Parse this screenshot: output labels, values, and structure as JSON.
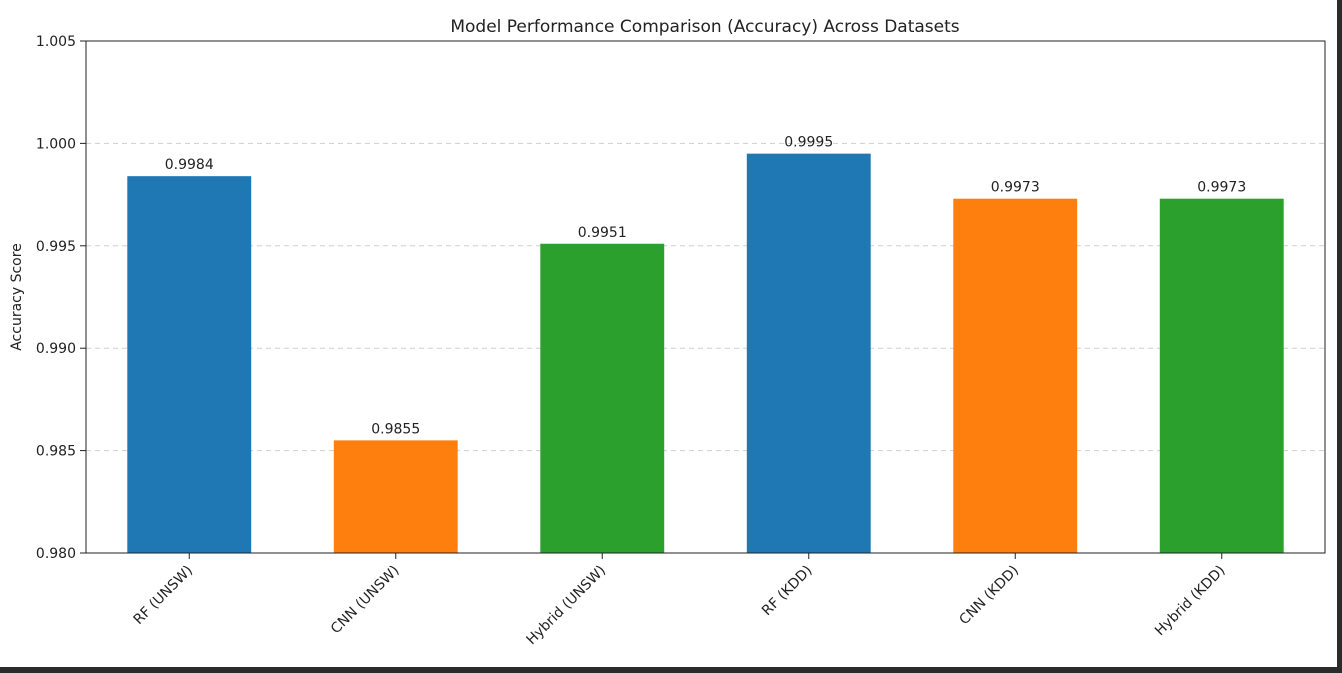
{
  "chart_data": {
    "type": "bar",
    "title": "Model Performance Comparison (Accuracy) Across Datasets",
    "xlabel": "",
    "ylabel": "Accuracy Score",
    "categories": [
      "RF (UNSW)",
      "CNN (UNSW)",
      "Hybrid (UNSW)",
      "RF (KDD)",
      "CNN (KDD)",
      "Hybrid (KDD)"
    ],
    "values": [
      0.9984,
      0.9855,
      0.9951,
      0.9995,
      0.9973,
      0.9973
    ],
    "data_labels": [
      "0.9984",
      "0.9855",
      "0.9951",
      "0.9995",
      "0.9973",
      "0.9973"
    ],
    "bar_colors": [
      "#1f77b4",
      "#ff7f0e",
      "#2ca02c",
      "#1f77b4",
      "#ff7f0e",
      "#2ca02c"
    ],
    "ylim": [
      0.98,
      1.005
    ],
    "yticks": [
      0.98,
      0.985,
      0.99,
      0.995,
      1.0,
      1.005
    ],
    "ytick_labels": [
      "0.980",
      "0.985",
      "0.990",
      "0.995",
      "1.000",
      "1.005"
    ],
    "grid": "y, dashed",
    "legend": "none"
  }
}
